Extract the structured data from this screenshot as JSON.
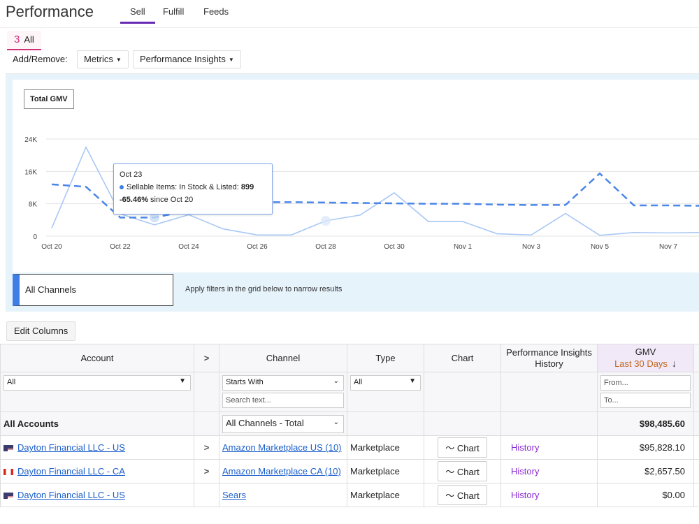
{
  "header": {
    "title": "Performance",
    "tabs": [
      {
        "label": "Sell",
        "active": true
      },
      {
        "label": "Fulfill",
        "active": false
      },
      {
        "label": "Feeds",
        "active": false
      }
    ]
  },
  "subtab": {
    "number": "3",
    "label": "All"
  },
  "add_remove": {
    "label": "Add/Remove:",
    "metrics": "Metrics",
    "insights": "Performance Insights"
  },
  "chart_data": {
    "type": "line",
    "legend_button": "Total GMV",
    "categories": [
      "Oct 20",
      "Oct 21",
      "Oct 22",
      "Oct 23",
      "Oct 24",
      "Oct 25",
      "Oct 26",
      "Oct 27",
      "Oct 28",
      "Oct 29",
      "Oct 30",
      "Oct 31",
      "Nov 1",
      "Nov 2",
      "Nov 3",
      "Nov 4",
      "Nov 5",
      "Nov 6",
      "Nov 7",
      "Nov 8"
    ],
    "x_tick_labels": [
      "Oct 20",
      "Oct 22",
      "Oct 24",
      "Oct 26",
      "Oct 28",
      "Oct 30",
      "Nov 1",
      "Nov 3",
      "Nov 5",
      "Nov 7"
    ],
    "y_tick_labels": [
      "0",
      "8K",
      "16K",
      "24K"
    ],
    "ylim": [
      0,
      24000
    ],
    "series": [
      {
        "style": "solid",
        "color": "#a9c8f5",
        "values": [
          2000,
          22000,
          5500,
          2800,
          5300,
          1800,
          300,
          300,
          3800,
          5200,
          10700,
          3600,
          3600,
          600,
          300,
          5600,
          200,
          900,
          800,
          900
        ]
      },
      {
        "style": "dashed",
        "color": "#4a86e8",
        "values": [
          12800,
          12200,
          4600,
          4600,
          6300,
          8100,
          8400,
          8400,
          8300,
          8200,
          8100,
          8000,
          8000,
          7800,
          7700,
          7700,
          15500,
          7600,
          7600,
          7500
        ]
      }
    ],
    "tooltip": {
      "date": "Oct 23",
      "series_label": "Sellable Items: In Stock & Listed:",
      "value": "899",
      "change": "-65.46%",
      "change_suffix": "since Oct 20"
    }
  },
  "filter_strip": {
    "channel": "All Channels",
    "hint": "Apply filters in the grid below to narrow results"
  },
  "edit_columns": "Edit Columns",
  "grid": {
    "columns": {
      "account": "Account",
      "channel": "Channel",
      "type": "Type",
      "chart": "Chart",
      "insights_line1": "Performance Insights",
      "insights_line2": "History",
      "gmv": "GMV",
      "gmv_sub": "Last 30 Days"
    },
    "filters": {
      "account": "All",
      "channel_mode": "Starts With",
      "channel_placeholder": "Search text...",
      "type": "All",
      "gmv_from": "From...",
      "gmv_to": "To..."
    },
    "total": {
      "account": "All Accounts",
      "channel": "All Channels - Total",
      "gmv": "$98,485.60"
    },
    "rows": [
      {
        "account": "Dayton Financial LLC - US",
        "flag": "us",
        "expand": true,
        "channel": "Amazon Marketplace US (10)",
        "type": "Marketplace",
        "chart": "Chart",
        "history": "History",
        "gmv": "$95,828.10"
      },
      {
        "account": "Dayton Financial LLC - CA",
        "flag": "ca",
        "expand": true,
        "channel": "Amazon Marketplace CA (10)",
        "type": "Marketplace",
        "chart": "Chart",
        "history": "History",
        "gmv": "$2,657.50"
      },
      {
        "account": "Dayton Financial LLC - US",
        "flag": "us",
        "expand": false,
        "channel": "Sears",
        "type": "Marketplace",
        "chart": "Chart",
        "history": "History",
        "gmv": "$0.00"
      }
    ]
  }
}
